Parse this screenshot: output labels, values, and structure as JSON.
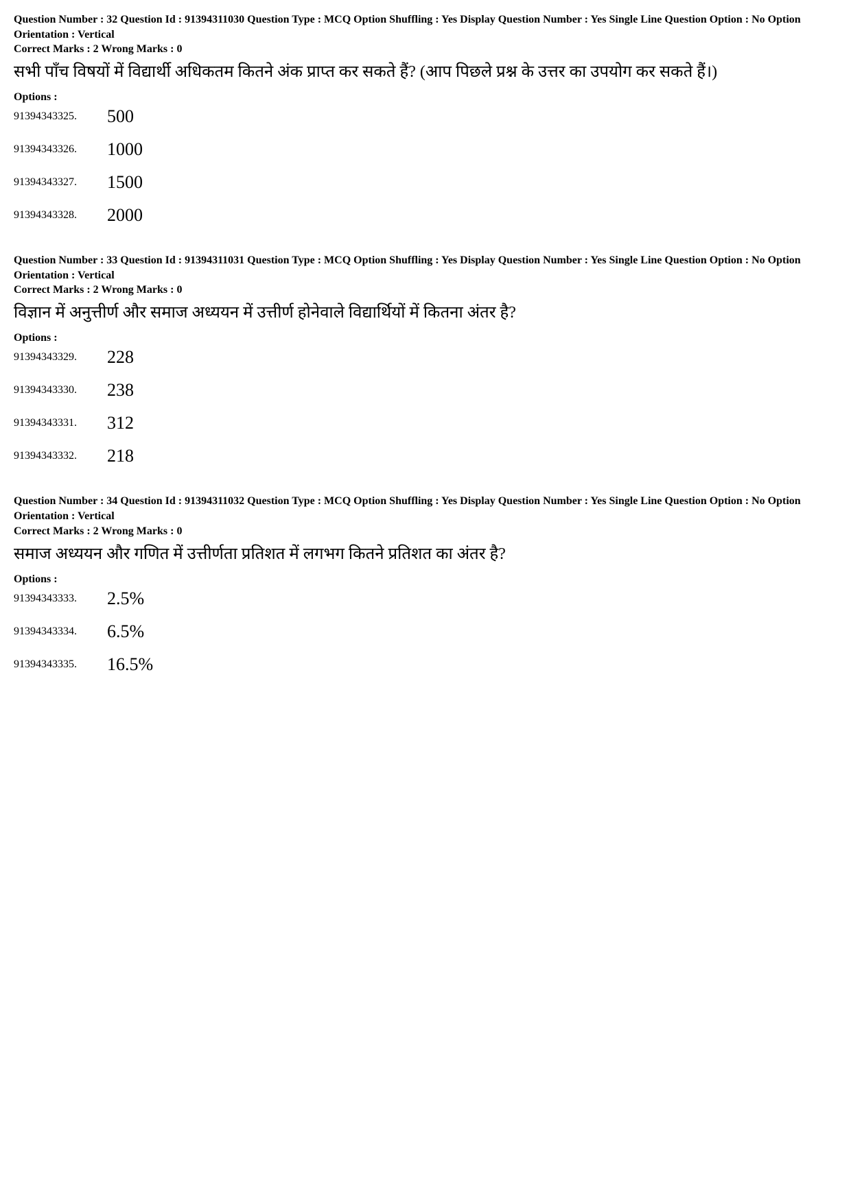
{
  "page": {
    "background_color": "#ffffff",
    "text_color": "#000000",
    "meta_fontsize": 16,
    "qtext_fontsize": 24,
    "option_value_fontsize": 26,
    "option_id_fontsize": 16
  },
  "labels": {
    "options": "Options :"
  },
  "questions": [
    {
      "meta": "Question Number : 32  Question Id : 91394311030  Question Type : MCQ  Option Shuffling : Yes  Display Question Number : Yes  Single Line Question Option : No  Option Orientation : Vertical",
      "marks": "Correct Marks : 2  Wrong Marks : 0",
      "text": "सभी पाँच विषयों में विद्यार्थी अधिकतम कितने अंक प्राप्त कर सकते हैं?  (आप पिछले प्रश्न के उत्तर का उपयोग कर सकते हैं।)",
      "options": [
        {
          "id": "91394343325.",
          "value": "500"
        },
        {
          "id": "91394343326.",
          "value": "1000"
        },
        {
          "id": "91394343327.",
          "value": "1500"
        },
        {
          "id": "91394343328.",
          "value": "2000"
        }
      ]
    },
    {
      "meta": "Question Number : 33  Question Id : 91394311031  Question Type : MCQ  Option Shuffling : Yes  Display Question Number : Yes  Single Line Question Option : No  Option Orientation : Vertical",
      "marks": "Correct Marks : 2  Wrong Marks : 0",
      "text": "विज्ञान में अनुत्तीर्ण और समाज अध्ययन में उत्तीर्ण होनेवाले विद्यार्थियों में कितना अंतर है?",
      "options": [
        {
          "id": "91394343329.",
          "value": "228"
        },
        {
          "id": "91394343330.",
          "value": "238"
        },
        {
          "id": "91394343331.",
          "value": "312"
        },
        {
          "id": "91394343332.",
          "value": "218"
        }
      ]
    },
    {
      "meta": "Question Number : 34  Question Id : 91394311032  Question Type : MCQ  Option Shuffling : Yes  Display Question Number : Yes  Single Line Question Option : No  Option Orientation : Vertical",
      "marks": "Correct Marks : 2  Wrong Marks : 0",
      "text": "समाज अध्ययन और गणित में उत्तीर्णता प्रतिशत में लगभग कितने प्रतिशत का अंतर है?",
      "options": [
        {
          "id": "91394343333.",
          "value": "2.5%"
        },
        {
          "id": "91394343334.",
          "value": "6.5%"
        },
        {
          "id": "91394343335.",
          "value": "16.5%"
        }
      ]
    }
  ]
}
